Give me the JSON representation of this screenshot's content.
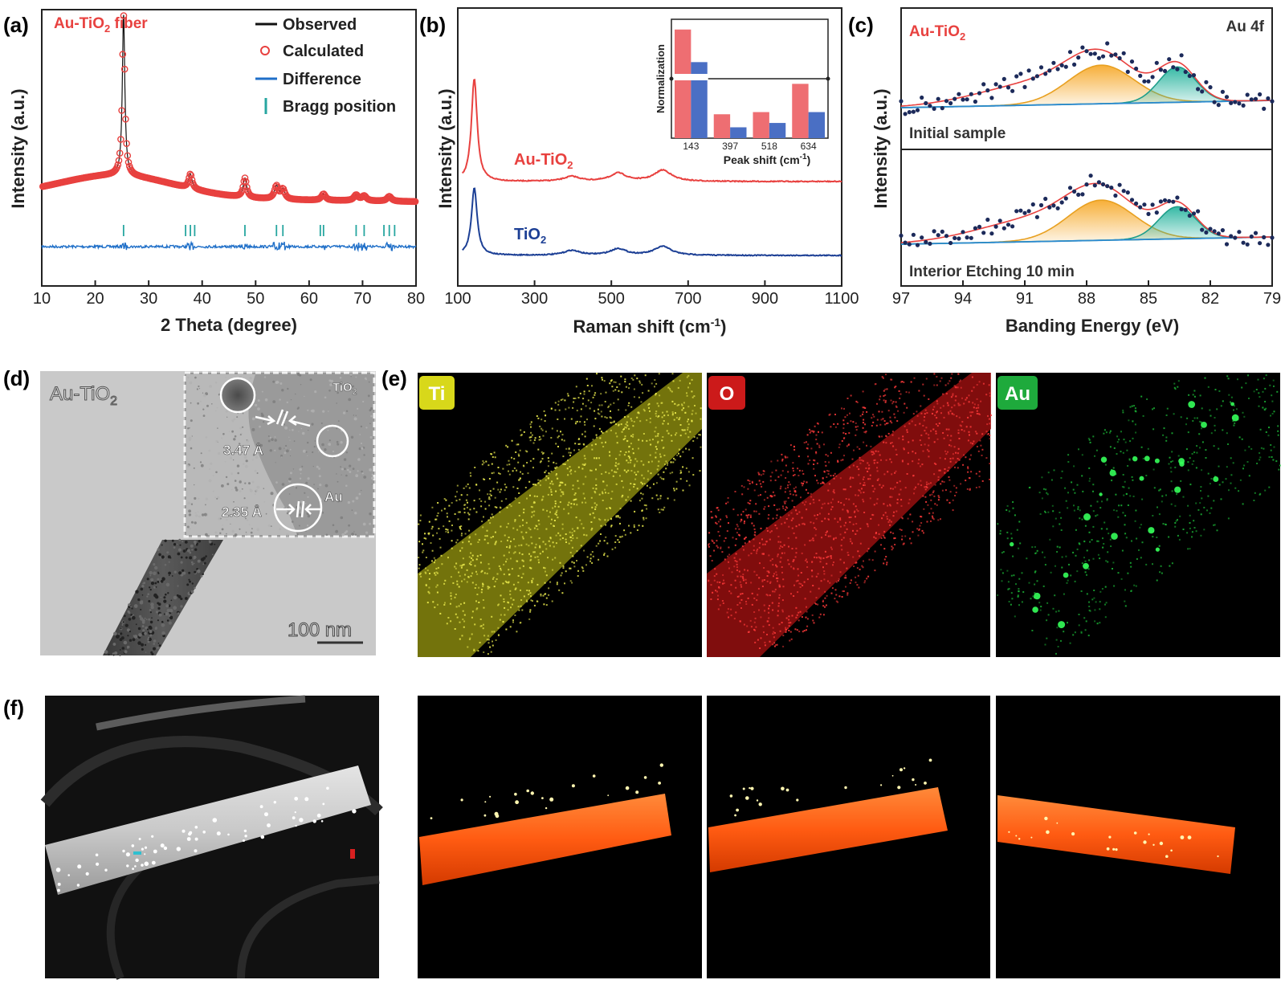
{
  "figure": {
    "panel_letters": [
      "(a)",
      "(b)",
      "(c)",
      "(d)",
      "(e)",
      "(f)"
    ]
  },
  "colors": {
    "red": "#e8413f",
    "blue": "#1f6fc8",
    "navy": "#1c3f95",
    "teal_bragg": "#27a6a0",
    "orange_fill": "#f6a623",
    "teal_fill": "#2bb5a0",
    "ti_map": "#d8d81a",
    "o_map": "#d61a1a",
    "au_map": "#1ec83c",
    "tomo": "#ff5b12"
  },
  "chart_data": [
    {
      "panel": "(a)",
      "type": "line",
      "sample_label": "Au-TiO",
      "sample_label_sub": "2",
      "sample_label_tail": " fiber",
      "xlabel": "2 Theta (degree)",
      "ylabel": "Intensity (a.u.)",
      "xlim": [
        10,
        80
      ],
      "xticks": [
        10,
        20,
        30,
        40,
        50,
        60,
        70,
        80
      ],
      "legend": [
        "Observed",
        "Calculated",
        "Difference",
        "Bragg position"
      ],
      "legend_position": "top-right",
      "peaks_2theta": [
        25.3,
        37.8,
        48.0,
        53.9,
        55.1,
        62.7,
        68.8,
        70.3,
        75.0
      ],
      "bragg_positions": [
        25.3,
        36.9,
        37.8,
        38.6,
        48.0,
        53.9,
        55.1,
        62.1,
        62.7,
        68.8,
        70.3,
        74.0,
        75.0,
        76.0
      ]
    },
    {
      "panel": "(b)",
      "type": "line",
      "xlabel_main": "Raman shift (cm",
      "xlabel_sup": "-1",
      "xlabel_tail": ")",
      "ylabel": "Intensity (a.u.)",
      "xlim": [
        100,
        1100
      ],
      "xticks": [
        100,
        300,
        500,
        700,
        900,
        1100
      ],
      "series": [
        {
          "name_main": "Au-TiO",
          "name_sub": "2",
          "peaks": [
            143,
            397,
            518,
            634
          ]
        },
        {
          "name_main": "TiO",
          "name_sub": "2",
          "peaks": [
            143,
            397,
            518,
            634
          ]
        }
      ],
      "inset": {
        "type": "bar",
        "ylabel": "Normalization",
        "xlabel_main": "Peak shift (cm",
        "xlabel_sup": "-1",
        "xlabel_tail": ")",
        "categories": [
          "143",
          "397",
          "518",
          "634"
        ],
        "series": [
          {
            "values": [
              1.0,
              0.22,
              0.24,
              0.5
            ]
          },
          {
            "values": [
              0.7,
              0.1,
              0.14,
              0.24
            ]
          }
        ],
        "ylim": [
          0,
          1.05
        ]
      }
    },
    {
      "panel": "(c)",
      "type": "scatter",
      "sample_label_main": "Au-TiO",
      "sample_label_sub": "2",
      "orbital_label": "Au 4f",
      "xlabel": "Banding Energy (eV)",
      "ylabel": "Intensity (a.u.)",
      "xlim": [
        97,
        79
      ],
      "xticks": [
        97,
        94,
        91,
        88,
        85,
        82,
        79
      ],
      "subplots": [
        {
          "label": "Initial sample",
          "peaks_eV": [
            87.3,
            83.6
          ]
        },
        {
          "label": "Interior Etching 10 min",
          "peaks_eV": [
            87.3,
            83.6
          ]
        }
      ]
    }
  ],
  "panel_d": {
    "sample_main": "Au-TiO",
    "sample_sub": "2",
    "inset_label_main": "TiO",
    "inset_label_sub": "2",
    "au_label": "Au",
    "d_spacing_1": "3.47 Å",
    "d_spacing_2": "2.35 Å",
    "scale_bar": "100 nm"
  },
  "panel_e": {
    "maps": [
      {
        "label": "Ti"
      },
      {
        "label": "O"
      },
      {
        "label": "Au"
      }
    ]
  }
}
